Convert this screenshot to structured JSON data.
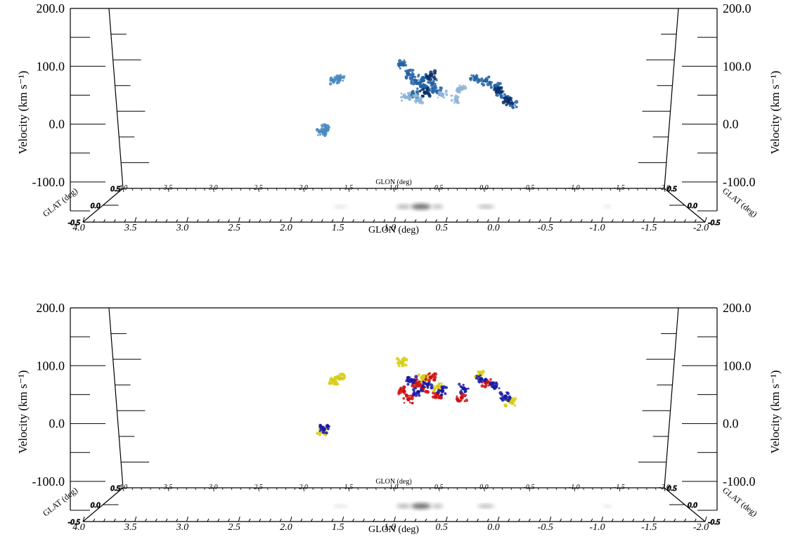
{
  "colors": {
    "top_blob_light": "#8fb6d6",
    "top_blob_mid": "#4a88c0",
    "top_blob_dark": "#2563a6",
    "top_blob_deep": "#0b2f6b",
    "mix_red": "#cc1111",
    "mix_blue": "#1a1aa8",
    "mix_yellow": "#d6cc10",
    "floor_gray": "#555555"
  },
  "chart_data": [
    {
      "type": "scatter",
      "panel": "top",
      "ylabel": "Velocity (km s⁻¹)",
      "xlabel": "GLON (deg)",
      "zlabel": "GLAT (deg)",
      "ylim": [
        -150,
        200
      ],
      "y_ticks": [
        "200.0",
        "100.0",
        "0.0",
        "-100.0"
      ],
      "x_ticks_front": [
        "4.0",
        "3.5",
        "3.0",
        "2.5",
        "2.0",
        "1.5",
        "1.0",
        "0.5",
        "0.0",
        "-0.5",
        "-1.0",
        "-1.5",
        "-2.0"
      ],
      "x_ticks_back": [
        "4.0",
        "3.5",
        "3.0",
        "2.5",
        "2.0",
        "1.5",
        "1.0",
        "0.5",
        "0.0",
        "-0.5",
        "-1.0",
        "-1.5",
        "-2.0"
      ],
      "z_ticks": [
        "0.5",
        "0.0",
        "-0.5"
      ],
      "xlim": [
        4.0,
        -2.0
      ],
      "zlim": [
        -0.5,
        0.5
      ],
      "series": [
        {
          "color": "top_blob_mid",
          "points": [
            [
              1.62,
              60
            ],
            [
              1.56,
              63
            ],
            [
              1.74,
              -33
            ],
            [
              1.7,
              -28
            ]
          ]
        },
        {
          "color": "top_blob_dark",
          "points": [
            [
              0.92,
              90
            ],
            [
              0.85,
              72
            ],
            [
              0.78,
              60
            ],
            [
              0.72,
              50
            ],
            [
              0.65,
              45
            ],
            [
              0.55,
              40
            ],
            [
              0.8,
              35
            ],
            [
              0.6,
              55
            ],
            [
              0.7,
              65
            ]
          ]
        },
        {
          "color": "top_blob_deep",
          "points": [
            [
              0.68,
              38
            ],
            [
              0.62,
              70
            ]
          ]
        },
        {
          "color": "top_blob_light",
          "points": [
            [
              0.88,
              30
            ],
            [
              0.75,
              25
            ],
            [
              0.5,
              35
            ],
            [
              0.36,
              25
            ],
            [
              0.3,
              45
            ]
          ]
        },
        {
          "color": "top_blob_dark",
          "points": [
            [
              0.16,
              65
            ],
            [
              0.05,
              60
            ],
            [
              -0.05,
              50
            ],
            [
              -0.1,
              40
            ],
            [
              -0.15,
              28
            ],
            [
              -0.22,
              18
            ]
          ]
        },
        {
          "color": "top_blob_deep",
          "points": [
            [
              -0.08,
              45
            ],
            [
              -0.18,
              22
            ]
          ]
        }
      ]
    },
    {
      "type": "scatter",
      "panel": "bottom",
      "ylabel": "Velocity (km s⁻¹)",
      "xlabel": "GLON (deg)",
      "zlabel": "GLAT (deg)",
      "ylim": [
        -150,
        200
      ],
      "y_ticks": [
        "200.0",
        "100.0",
        "0.0",
        "-100.0"
      ],
      "x_ticks_front": [
        "4.0",
        "3.5",
        "3.0",
        "2.5",
        "2.0",
        "1.5",
        "1.0",
        "0.5",
        "0.0",
        "-0.5",
        "-1.0",
        "-1.5",
        "-2.0"
      ],
      "x_ticks_back": [
        "4.0",
        "3.5",
        "3.0",
        "2.5",
        "2.0",
        "1.5",
        "1.0",
        "0.5",
        "0.0",
        "-0.5",
        "-1.0",
        "-1.5",
        "-2.0"
      ],
      "z_ticks": [
        "0.5",
        "0.0",
        "-0.5"
      ],
      "xlim": [
        4.0,
        -2.0
      ],
      "zlim": [
        -0.5,
        0.5
      ],
      "series": [
        {
          "color": "mix_yellow",
          "points": [
            [
              1.62,
              60
            ],
            [
              1.56,
              63
            ],
            [
              1.74,
              -33
            ],
            [
              0.92,
              92
            ],
            [
              0.7,
              62
            ],
            [
              0.55,
              48
            ],
            [
              0.12,
              68
            ],
            [
              -0.2,
              20
            ]
          ]
        },
        {
          "color": "mix_red",
          "points": [
            [
              0.9,
              40
            ],
            [
              0.85,
              25
            ],
            [
              0.78,
              55
            ],
            [
              0.7,
              45
            ],
            [
              0.62,
              65
            ],
            [
              0.55,
              35
            ],
            [
              0.3,
              28
            ],
            [
              0.05,
              55
            ]
          ]
        },
        {
          "color": "mix_blue",
          "points": [
            [
              0.82,
              60
            ],
            [
              0.75,
              38
            ],
            [
              0.65,
              52
            ],
            [
              0.5,
              40
            ],
            [
              0.28,
              45
            ],
            [
              0.1,
              62
            ],
            [
              -0.05,
              48
            ],
            [
              -0.15,
              30
            ],
            [
              1.72,
              -30
            ]
          ]
        }
      ]
    }
  ]
}
